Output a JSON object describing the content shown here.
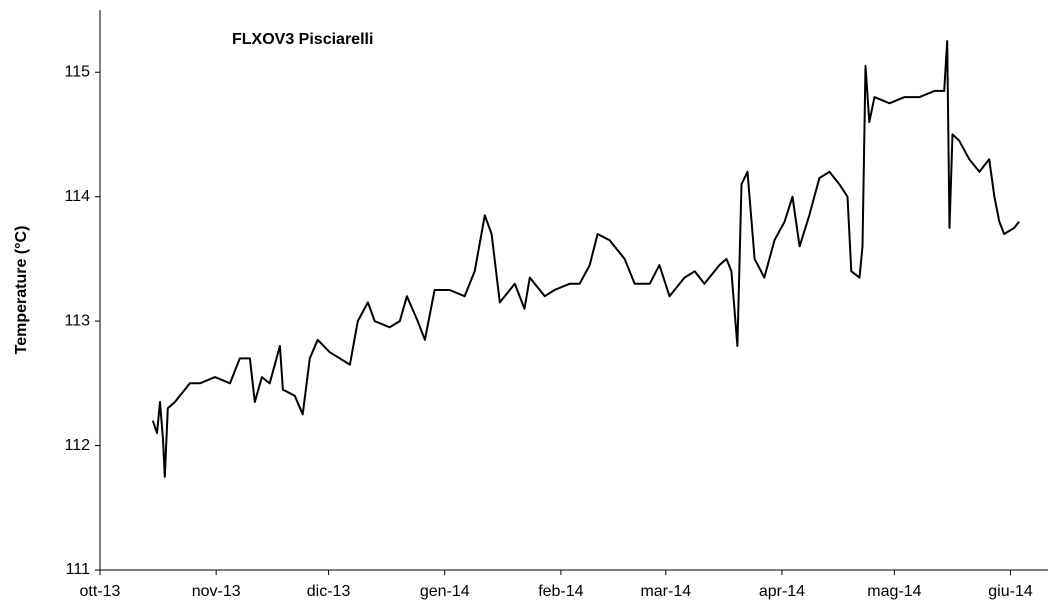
{
  "chart_data": {
    "type": "line",
    "title": "FLXOV3 Pisciarelli",
    "y_label": "Temperature (°C)",
    "xlim": [
      0,
      253
    ],
    "ylim": [
      111,
      115.5
    ],
    "xticks": [
      {
        "value": 0,
        "label": "ott-13"
      },
      {
        "value": 31,
        "label": "nov-13"
      },
      {
        "value": 61,
        "label": "dic-13"
      },
      {
        "value": 92,
        "label": "gen-14"
      },
      {
        "value": 123,
        "label": "feb-14"
      },
      {
        "value": 151,
        "label": "mar-14"
      },
      {
        "value": 182,
        "label": "apr-14"
      },
      {
        "value": 212,
        "label": "mag-14"
      },
      {
        "value": 243,
        "label": "giu-14"
      }
    ],
    "yticks": [
      111,
      112,
      113,
      114,
      115
    ],
    "series": [
      {
        "color": "#000000",
        "x": [
          14.1,
          15.2,
          16,
          16.8,
          17.3,
          18.1,
          20,
          24,
          26.7,
          30.7,
          34.7,
          37.3,
          40,
          41.3,
          43.2,
          45.3,
          48,
          48.8,
          52,
          54.1,
          56,
          58.1,
          61.3,
          64,
          66.7,
          68.8,
          71.5,
          73.3,
          77.3,
          80,
          81.9,
          84.8,
          86.7,
          89.3,
          93.3,
          97.3,
          100,
          102.7,
          104.5,
          106.7,
          110.7,
          113.3,
          114.7,
          118.7,
          121.3,
          125.3,
          128,
          130.7,
          132.8,
          136,
          140,
          142.7,
          146.7,
          149.3,
          152,
          156,
          158.7,
          161.3,
          165.3,
          167.2,
          168.5,
          170.1,
          171.2,
          172.8,
          174.7,
          177.3,
          180,
          182.7,
          184.8,
          186.7,
          189.3,
          192,
          194.7,
          197.3,
          199.5,
          200.5,
          202.7,
          203.5,
          204.3,
          205.3,
          206.7,
          210.7,
          214.7,
          218.7,
          222.7,
          225.3,
          226.1,
          226.7,
          227.5,
          229.3,
          232,
          234.7,
          237.3,
          238.7,
          240,
          241.3,
          244,
          245.3
        ],
        "values": [
          112.2,
          112.1,
          112.35,
          112.05,
          111.75,
          112.3,
          112.35,
          112.5,
          112.5,
          112.55,
          112.5,
          112.7,
          112.7,
          112.35,
          112.55,
          112.5,
          112.8,
          112.45,
          112.4,
          112.25,
          112.7,
          112.85,
          112.75,
          112.7,
          112.65,
          113.0,
          113.15,
          113.0,
          112.95,
          113.0,
          113.2,
          113.0,
          112.85,
          113.25,
          113.25,
          113.2,
          113.4,
          113.85,
          113.7,
          113.15,
          113.3,
          113.1,
          113.35,
          113.2,
          113.25,
          113.3,
          113.3,
          113.45,
          113.7,
          113.65,
          113.5,
          113.3,
          113.3,
          113.45,
          113.2,
          113.35,
          113.4,
          113.3,
          113.45,
          113.5,
          113.4,
          112.8,
          114.1,
          114.2,
          113.5,
          113.35,
          113.65,
          113.8,
          114.0,
          113.6,
          113.85,
          114.15,
          114.2,
          114.1,
          114.0,
          113.4,
          113.35,
          113.6,
          115.05,
          114.6,
          114.8,
          114.75,
          114.8,
          114.8,
          114.85,
          114.85,
          115.25,
          113.75,
          114.5,
          114.45,
          114.3,
          114.2,
          114.3,
          114.0,
          113.8,
          113.7,
          113.75,
          113.8
        ]
      }
    ]
  }
}
